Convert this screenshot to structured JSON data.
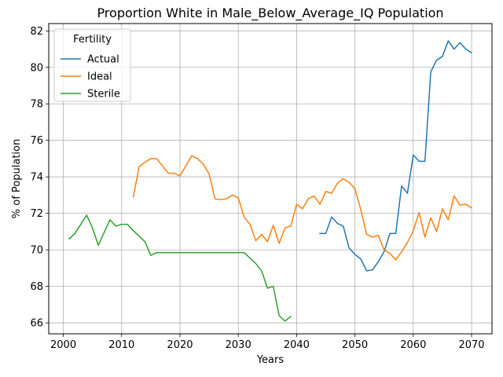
{
  "chart_data": {
    "type": "line",
    "title": "Proportion White in Male_Below_Average_IQ Population",
    "xlabel": "Years",
    "ylabel": "% of Population",
    "xlim": [
      1997.5,
      2073.5
    ],
    "ylim": [
      65.4,
      82.4
    ],
    "xticks": [
      2000,
      2010,
      2020,
      2030,
      2040,
      2050,
      2060,
      2070
    ],
    "yticks": [
      66,
      68,
      70,
      72,
      74,
      76,
      78,
      80,
      82
    ],
    "grid": true,
    "legend": {
      "title": "Fertility",
      "placement": "top-left"
    },
    "series": [
      {
        "name": "Actual",
        "color": "#1f77b4",
        "points": [
          [
            2044,
            70.9
          ],
          [
            2045,
            70.9
          ],
          [
            2046,
            71.8
          ],
          [
            2047,
            71.45
          ],
          [
            2048,
            71.3
          ],
          [
            2049,
            70.1
          ],
          [
            2050,
            69.75
          ],
          [
            2051,
            69.5
          ],
          [
            2052,
            68.85
          ],
          [
            2053,
            68.9
          ],
          [
            2054,
            69.35
          ],
          [
            2055,
            69.9
          ],
          [
            2056,
            70.9
          ],
          [
            2057,
            70.9
          ],
          [
            2058,
            73.5
          ],
          [
            2059,
            73.1
          ],
          [
            2060,
            75.2
          ],
          [
            2061,
            74.85
          ],
          [
            2062,
            74.85
          ],
          [
            2063,
            79.75
          ],
          [
            2064,
            80.4
          ],
          [
            2065,
            80.6
          ],
          [
            2066,
            81.45
          ],
          [
            2067,
            81.0
          ],
          [
            2068,
            81.35
          ],
          [
            2069,
            81.0
          ],
          [
            2070,
            80.8
          ]
        ]
      },
      {
        "name": "Ideal",
        "color": "#ff7f0e",
        "points": [
          [
            2012,
            72.9
          ],
          [
            2013,
            74.55
          ],
          [
            2014,
            74.8
          ],
          [
            2015,
            75.0
          ],
          [
            2016,
            75.0
          ],
          [
            2017,
            74.6
          ],
          [
            2018,
            74.2
          ],
          [
            2019,
            74.2
          ],
          [
            2020,
            74.05
          ],
          [
            2021,
            74.6
          ],
          [
            2022,
            75.15
          ],
          [
            2023,
            75.0
          ],
          [
            2024,
            74.7
          ],
          [
            2025,
            74.15
          ],
          [
            2026,
            72.8
          ],
          [
            2027,
            72.75
          ],
          [
            2028,
            72.8
          ],
          [
            2029,
            73.0
          ],
          [
            2030,
            72.85
          ],
          [
            2031,
            71.8
          ],
          [
            2032,
            71.4
          ],
          [
            2033,
            70.5
          ],
          [
            2034,
            70.85
          ],
          [
            2035,
            70.45
          ],
          [
            2036,
            71.35
          ],
          [
            2037,
            70.35
          ],
          [
            2038,
            71.2
          ],
          [
            2039,
            71.3
          ],
          [
            2040,
            72.5
          ],
          [
            2041,
            72.25
          ],
          [
            2042,
            72.8
          ],
          [
            2043,
            72.95
          ],
          [
            2044,
            72.5
          ],
          [
            2045,
            73.2
          ],
          [
            2046,
            73.1
          ],
          [
            2047,
            73.65
          ],
          [
            2048,
            73.9
          ],
          [
            2049,
            73.7
          ],
          [
            2050,
            73.35
          ],
          [
            2051,
            72.2
          ],
          [
            2052,
            70.85
          ],
          [
            2053,
            70.7
          ],
          [
            2054,
            70.8
          ],
          [
            2055,
            70.0
          ],
          [
            2056,
            69.8
          ],
          [
            2057,
            69.45
          ],
          [
            2058,
            69.9
          ],
          [
            2059,
            70.4
          ],
          [
            2060,
            71.05
          ],
          [
            2061,
            72.05
          ],
          [
            2062,
            70.7
          ],
          [
            2063,
            71.75
          ],
          [
            2064,
            71.0
          ],
          [
            2065,
            72.25
          ],
          [
            2066,
            71.65
          ],
          [
            2067,
            72.95
          ],
          [
            2068,
            72.45
          ],
          [
            2069,
            72.5
          ],
          [
            2070,
            72.3
          ]
        ]
      },
      {
        "name": "Sterile",
        "color": "#2ca02c",
        "points": [
          [
            2001,
            70.6
          ],
          [
            2002,
            70.9
          ],
          [
            2003,
            71.4
          ],
          [
            2004,
            71.9
          ],
          [
            2005,
            71.2
          ],
          [
            2006,
            70.25
          ],
          [
            2007,
            70.95
          ],
          [
            2008,
            71.65
          ],
          [
            2009,
            71.3
          ],
          [
            2010,
            71.4
          ],
          [
            2011,
            71.4
          ],
          [
            2012,
            71.05
          ],
          [
            2013,
            70.75
          ],
          [
            2014,
            70.45
          ],
          [
            2015,
            69.7
          ],
          [
            2016,
            69.85
          ],
          [
            2017,
            69.85
          ],
          [
            2018,
            69.85
          ],
          [
            2019,
            69.85
          ],
          [
            2020,
            69.85
          ],
          [
            2021,
            69.85
          ],
          [
            2022,
            69.85
          ],
          [
            2023,
            69.85
          ],
          [
            2024,
            69.85
          ],
          [
            2025,
            69.85
          ],
          [
            2026,
            69.85
          ],
          [
            2027,
            69.85
          ],
          [
            2028,
            69.85
          ],
          [
            2029,
            69.85
          ],
          [
            2030,
            69.85
          ],
          [
            2031,
            69.85
          ],
          [
            2032,
            69.55
          ],
          [
            2033,
            69.25
          ],
          [
            2034,
            68.85
          ],
          [
            2035,
            67.9
          ],
          [
            2036,
            68.0
          ],
          [
            2037,
            66.4
          ],
          [
            2038,
            66.1
          ],
          [
            2039,
            66.35
          ]
        ]
      }
    ]
  }
}
